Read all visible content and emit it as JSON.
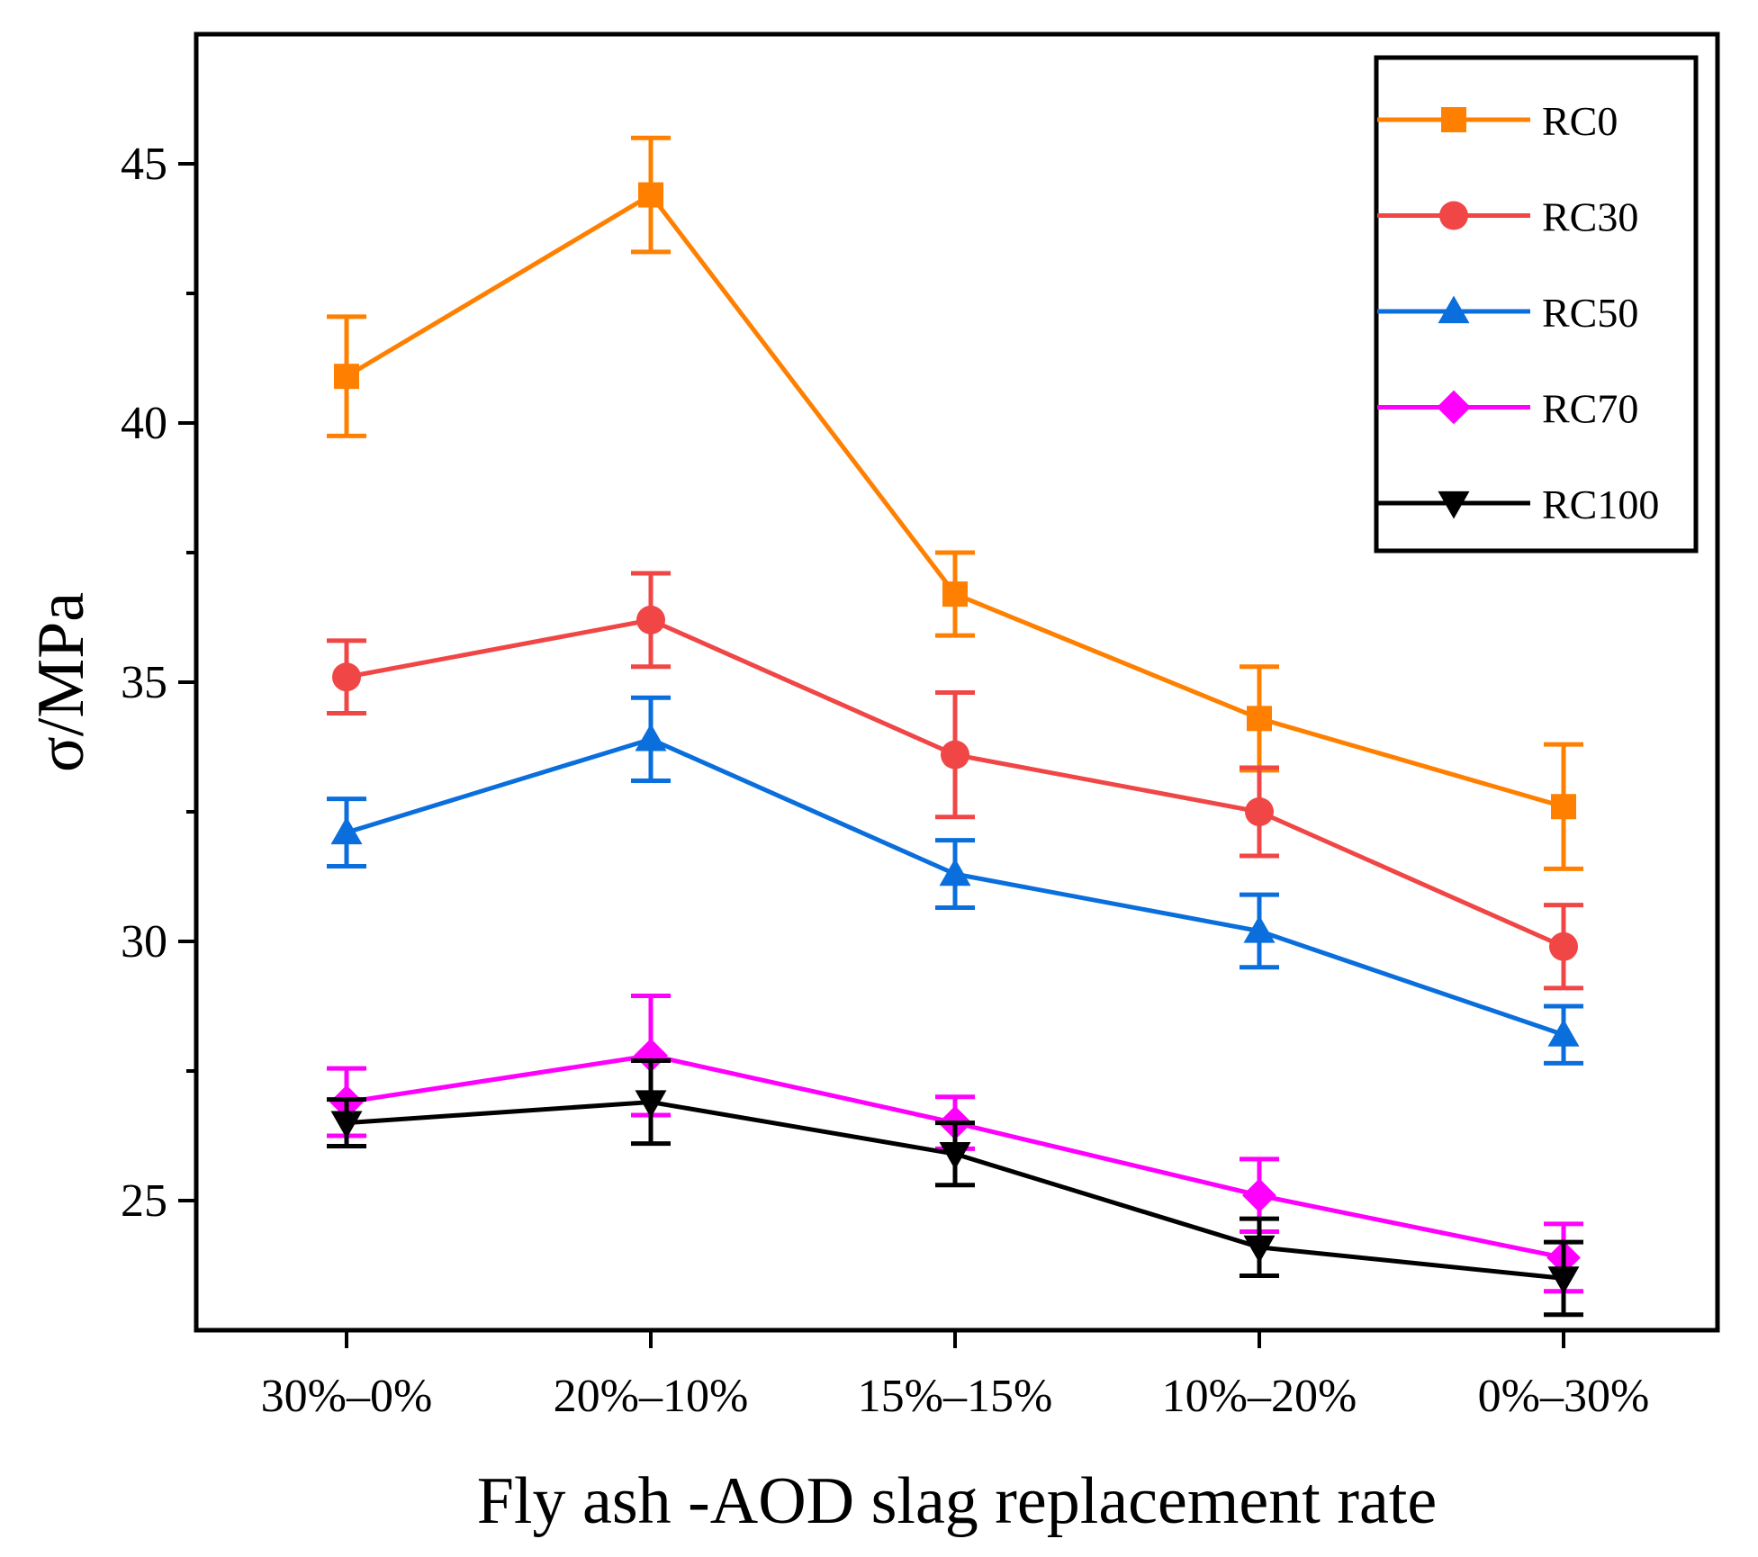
{
  "chart_data": {
    "type": "line",
    "title": "",
    "xlabel": "Fly ash -AOD slag replacement rate",
    "ylabel": "σ/MPa",
    "categories": [
      "30%–0%",
      "20%–10%",
      "15%–15%",
      "10%–20%",
      "0%–30%"
    ],
    "ylim": [
      22.5,
      47.5
    ],
    "yticks": [
      25,
      30,
      35,
      40,
      45
    ],
    "ytick_labels": [
      "25",
      "30",
      "35",
      "40",
      "45"
    ],
    "legend_position": "top-right",
    "series": [
      {
        "name": "RC0",
        "color": "#ff8000",
        "marker": "square",
        "values": [
          40.9,
          44.4,
          36.7,
          34.3,
          32.6
        ],
        "errors": [
          1.15,
          1.1,
          0.8,
          1.0,
          1.2
        ]
      },
      {
        "name": "RC30",
        "color": "#f04646",
        "marker": "circle",
        "values": [
          35.1,
          36.2,
          33.6,
          32.5,
          29.9
        ],
        "errors": [
          0.7,
          0.9,
          1.2,
          0.85,
          0.8
        ]
      },
      {
        "name": "RC50",
        "color": "#0a6edc",
        "marker": "triangle-up",
        "values": [
          32.1,
          33.9,
          31.3,
          30.2,
          28.2
        ],
        "errors": [
          0.65,
          0.8,
          0.65,
          0.7,
          0.55
        ]
      },
      {
        "name": "RC70",
        "color": "#ff00ff",
        "marker": "diamond",
        "values": [
          26.9,
          27.8,
          26.5,
          25.1,
          23.9
        ],
        "errors": [
          0.65,
          1.15,
          0.5,
          0.7,
          0.65
        ]
      },
      {
        "name": "RC100",
        "color": "#000000",
        "marker": "triangle-down",
        "values": [
          26.5,
          26.9,
          25.9,
          24.1,
          23.5
        ],
        "errors": [
          0.45,
          0.8,
          0.6,
          0.55,
          0.7
        ]
      }
    ]
  }
}
